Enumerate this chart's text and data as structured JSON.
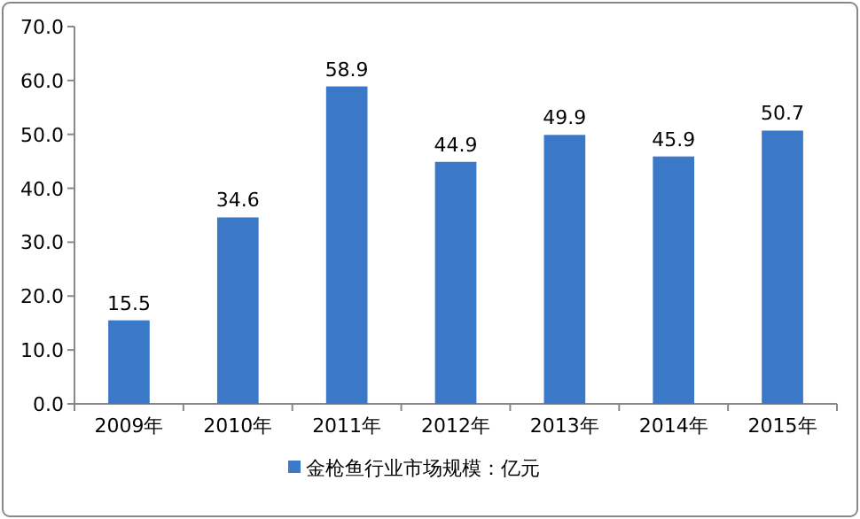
{
  "chart_data": {
    "type": "bar",
    "categories": [
      "2009年",
      "2010年",
      "2011年",
      "2012年",
      "2013年",
      "2014年",
      "2015年"
    ],
    "series": [
      {
        "name": "金枪鱼行业市场规模：亿元",
        "color": "#3c78c8",
        "values": [
          15.5,
          34.6,
          58.9,
          44.9,
          49.9,
          45.9,
          50.7
        ]
      }
    ],
    "ylim": [
      0,
      70
    ],
    "yticks": [
      {
        "value": 0,
        "label": "0.0"
      },
      {
        "value": 10,
        "label": "10.0"
      },
      {
        "value": 20,
        "label": "20.0"
      },
      {
        "value": 30,
        "label": "30.0"
      },
      {
        "value": 40,
        "label": "40.0"
      },
      {
        "value": 50,
        "label": "50.0"
      },
      {
        "value": 60,
        "label": "60.0"
      },
      {
        "value": 70,
        "label": "70.0"
      }
    ],
    "data_labels": true,
    "legend": "bottom",
    "grid": false
  }
}
